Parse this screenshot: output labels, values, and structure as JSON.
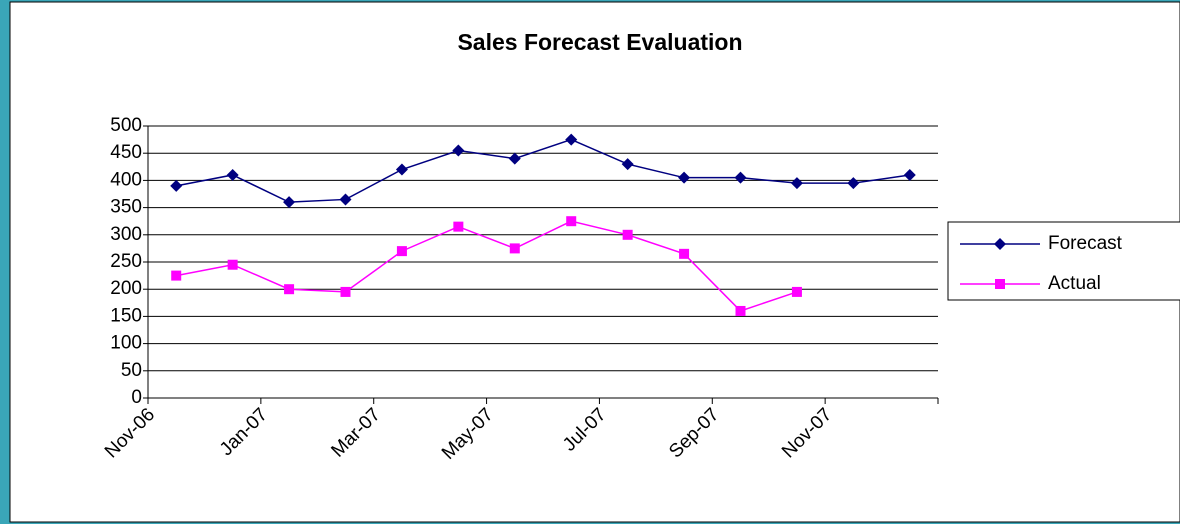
{
  "chart_data": {
    "type": "line",
    "title": "Sales Forecast Evaluation",
    "categories": [
      "Nov-06",
      null,
      "Jan-07",
      null,
      "Mar-07",
      null,
      "May-07",
      null,
      "Jul-07",
      null,
      "Sep-07",
      null,
      "Nov-07",
      null
    ],
    "series": [
      {
        "name": "Forecast",
        "color": "#000080",
        "marker": "diamond",
        "values": [
          390,
          410,
          360,
          365,
          420,
          455,
          440,
          475,
          430,
          405,
          405,
          395,
          395,
          410
        ]
      },
      {
        "name": "Actual",
        "color": "#ff00ff",
        "marker": "square",
        "values": [
          225,
          245,
          200,
          195,
          270,
          315,
          275,
          325,
          300,
          265,
          160,
          195,
          null,
          null
        ]
      }
    ],
    "ylim": [
      0,
      500
    ],
    "yticks": [
      0,
      50,
      100,
      150,
      200,
      250,
      300,
      350,
      400,
      450,
      500
    ],
    "grid": true,
    "legend": "right"
  }
}
